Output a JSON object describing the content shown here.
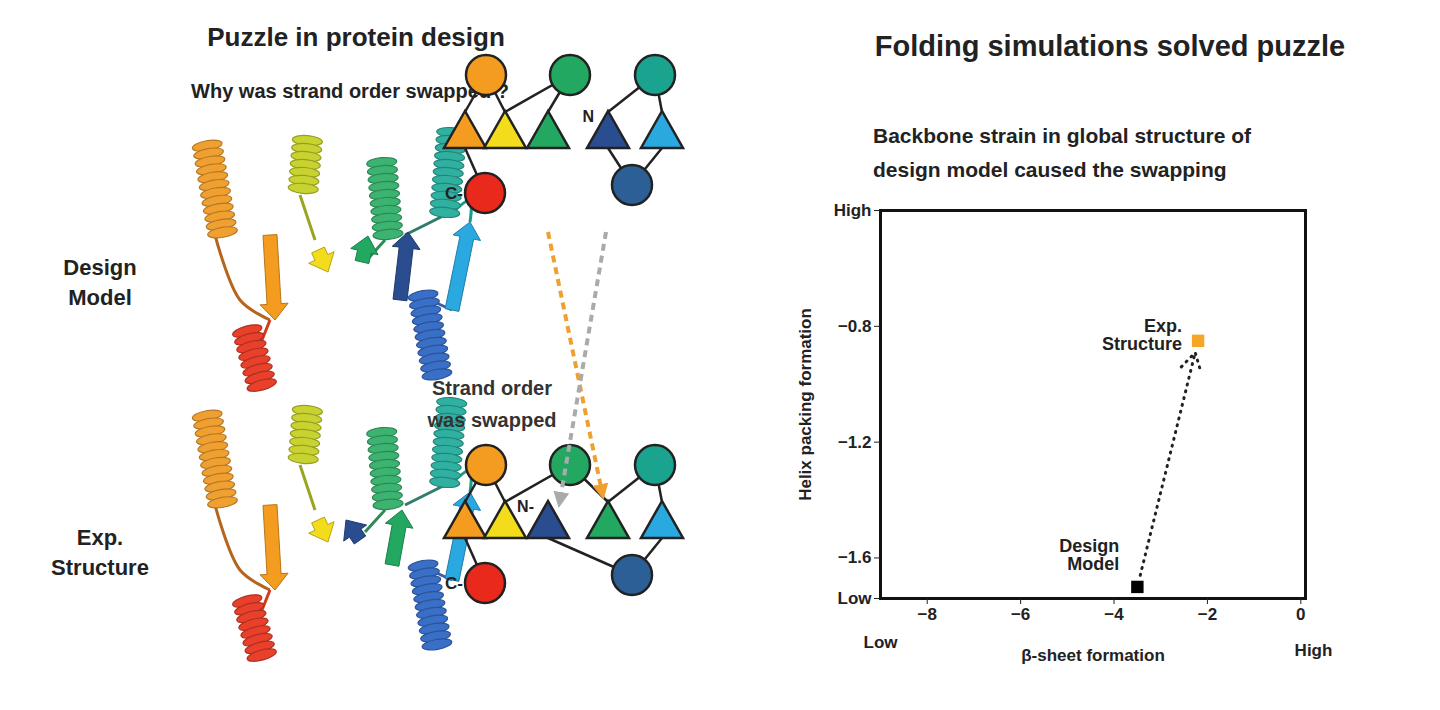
{
  "left_panel": {
    "title": "Puzzle in protein design",
    "subtitle": "Why was strand order swapped ?",
    "rows": [
      {
        "label": [
          "Design",
          "Model"
        ],
        "strand_order": [
          "#f39c1f",
          "#f2dc1b",
          "#23a862",
          "#2a4d8f",
          "#2aa8e0"
        ],
        "n_label": "N",
        "c_label": "C-"
      },
      {
        "label": [
          "Exp.",
          "Structure"
        ],
        "strand_order": [
          "#f39c1f",
          "#f2dc1b",
          "#2a4d8f",
          "#23a862",
          "#2aa8e0"
        ],
        "n_label": "N-",
        "c_label": "C-"
      }
    ],
    "annotation": [
      "Strand order",
      "was swapped"
    ]
  },
  "chart_data": {
    "type": "scatter",
    "title": "Folding simulations solved puzzle",
    "subtitle": [
      "Backbone strain in global structure of",
      "design model caused the swapping"
    ],
    "x_label": "β-sheet formation",
    "y_label": "Helix packing formation",
    "xlim": [
      -9,
      0.1
    ],
    "ylim": [
      -1.74,
      -0.4
    ],
    "xticks": [
      -8,
      -6,
      -4,
      -2,
      0
    ],
    "yticks": [
      {
        "value": -0.4,
        "label": "High"
      },
      -0.8,
      -1.2,
      -1.6,
      {
        "value": -1.74,
        "label": "Low"
      }
    ],
    "x_axis_end_labels": [
      "Low",
      "High"
    ],
    "points": [
      {
        "name": "Design Model",
        "x": -3.5,
        "y": -1.7,
        "color": "#000000"
      },
      {
        "name": "Exp. Structure",
        "x": -2.2,
        "y": -0.85,
        "color": "#f5a623"
      }
    ],
    "arrow": {
      "from": "Design Model",
      "to": "Exp. Structure"
    },
    "marker": "square",
    "line_style": "dotted"
  }
}
